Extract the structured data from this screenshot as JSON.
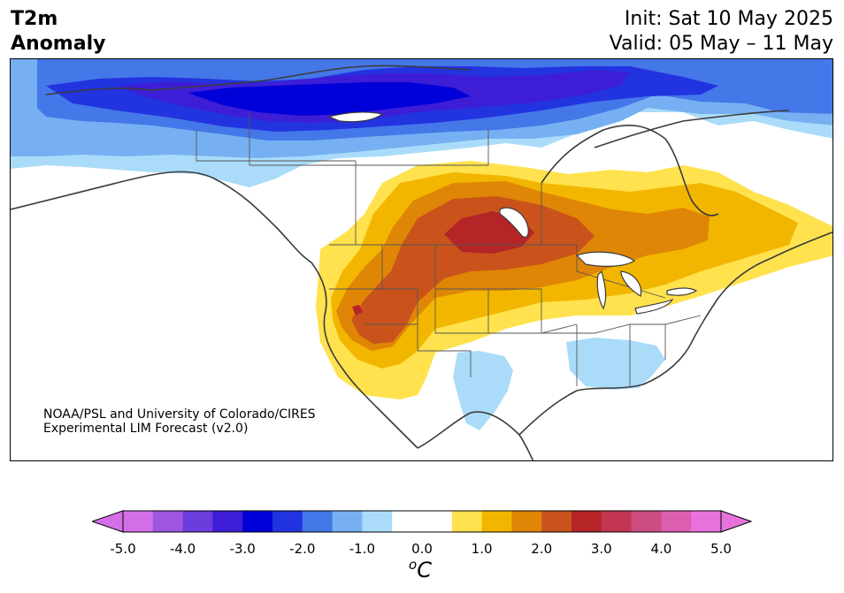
{
  "title": {
    "left_line1": "T2m",
    "left_line2": "Anomaly",
    "right_line1": "Init: Sat 10 May 2025",
    "right_line2": "Valid: 05 May – 11 May"
  },
  "credit": {
    "line1": "NOAA/PSL and University of Colorado/CIRES",
    "line2": "Experimental LIM Forecast (v2.0)"
  },
  "colorbar": {
    "unit_base": "C",
    "unit_sup": "o",
    "ticks": [
      "-5.0",
      "-4.0",
      "-3.0",
      "-2.0",
      "-1.0",
      "0.0",
      "1.0",
      "2.0",
      "3.0",
      "4.0",
      "5.0"
    ],
    "levels": [
      -5.0,
      -4.5,
      -4.0,
      -3.5,
      -3.0,
      -2.5,
      -2.0,
      -1.5,
      -1.0,
      -0.5,
      0.5,
      1.0,
      1.5,
      2.0,
      2.5,
      3.0,
      3.5,
      4.0,
      4.5,
      5.0
    ],
    "colors": [
      "#d46fe8",
      "#9e55e0",
      "#6b3ddc",
      "#3d1ed6",
      "#0000d8",
      "#2233e0",
      "#4477e8",
      "#77b0f2",
      "#aadcfa",
      "#ffffff",
      "#ffe24d",
      "#f2b600",
      "#df8606",
      "#c9531a",
      "#b52427",
      "#c23651",
      "#cd4d80",
      "#dc5eb1",
      "#e772dc"
    ],
    "under_color": "#d46fe8",
    "over_color": "#e772dc"
  },
  "map": {
    "projection": "Lambert conformal, North America",
    "region": "North America",
    "features": [
      "coastlines",
      "country borders",
      "state and province borders",
      "lakes"
    ],
    "anomaly_colors": {
      "cold_core": "#0000d8",
      "cold_strong": "#3d1ed6",
      "cold_mod": "#2233e0",
      "cold_med": "#4477e8",
      "cold_light": "#77b0f2",
      "cold_faint": "#aadcfa",
      "warm_faint": "#ffe24d",
      "warm_light": "#f2b600",
      "warm_med": "#df8606",
      "warm_strong": "#c9531a",
      "warm_core": "#b52427"
    }
  }
}
